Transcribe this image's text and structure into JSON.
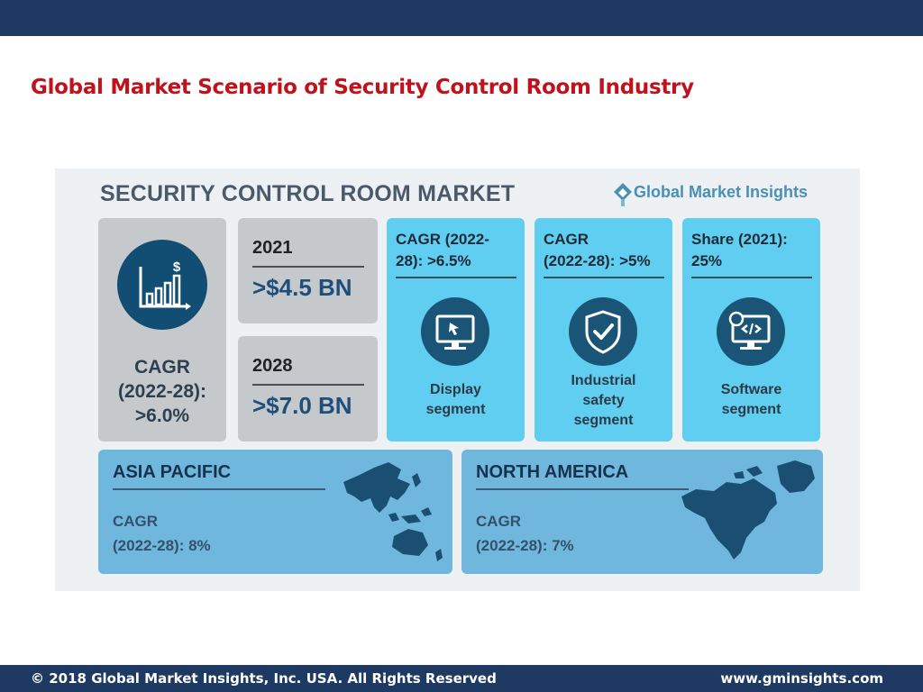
{
  "slide_title": "Global Market Scenario of Security Control Room Industry",
  "infographic": {
    "title": "SECURITY CONTROL ROOM MARKET",
    "brand": "Global Market Insights",
    "cagr_main": {
      "line1": "CAGR",
      "line2": "(2022-28):",
      "line3": ">6.0%",
      "icon": "bar-chart-dollar-icon"
    },
    "year_2021": {
      "year": "2021",
      "value": ">$4.5 BN"
    },
    "year_2028": {
      "year": "2028",
      "value": ">$7.0 BN"
    },
    "segments": [
      {
        "head1": "CAGR (2022-",
        "head2": "28): >6.5%",
        "icon": "monitor-icon",
        "label1": "Display",
        "label2": "segment"
      },
      {
        "head1": "CAGR",
        "head2": "(2022-28): >5%",
        "icon": "shield-check-icon",
        "label1": "Industrial",
        "label2": "safety",
        "label3": "segment"
      },
      {
        "head1": "Share (2021):",
        "head2": "25%",
        "icon": "software-monitor-icon",
        "label1": "Software",
        "label2": "segment"
      }
    ],
    "regions": [
      {
        "name": "ASIA PACIFIC",
        "cagr1": "CAGR",
        "cagr2": "(2022-28): 8%",
        "icon": "asia-pacific-map-icon"
      },
      {
        "name": "NORTH AMERICA",
        "cagr1": "CAGR",
        "cagr2": "(2022-28): 7%",
        "icon": "north-america-map-icon"
      }
    ]
  },
  "footer": {
    "copyright": "© 2018 Global Market Insights, Inc. USA. All Rights Reserved",
    "url": "www.gminsights.com"
  },
  "colors": {
    "header_bar": "#1e3a63",
    "title_red": "#c0121b",
    "cyan": "#5fcef1",
    "icon_navy": "#124e73"
  }
}
